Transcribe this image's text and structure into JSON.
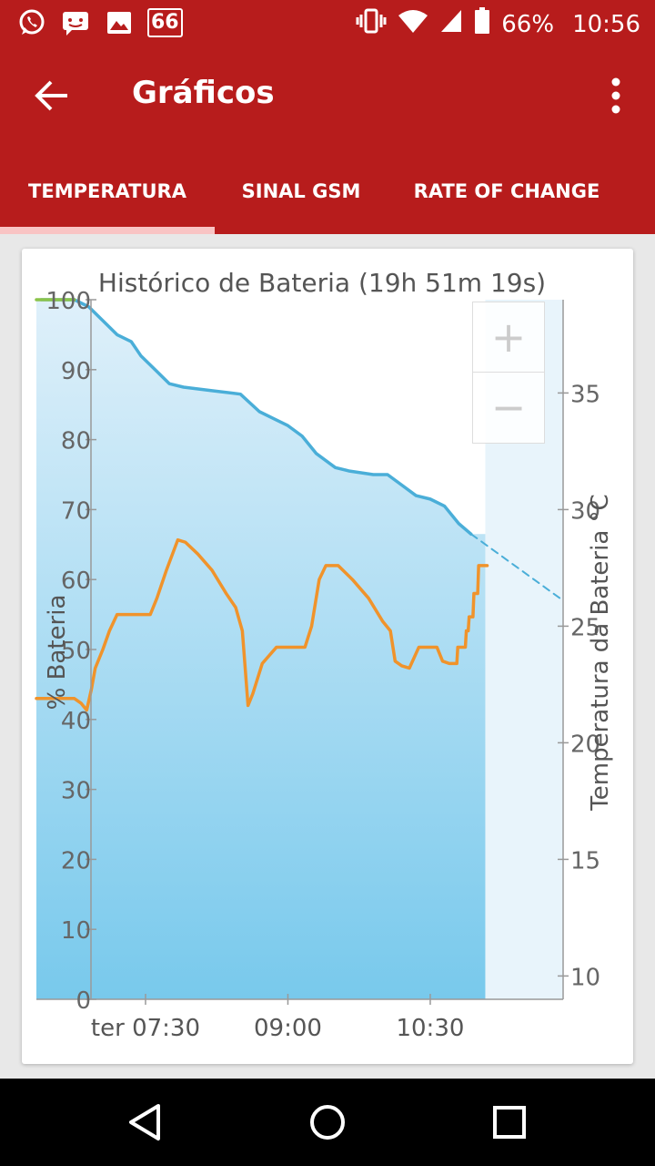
{
  "status_bar": {
    "notification_icons": [
      "whatsapp-icon",
      "sms-icon",
      "image-icon"
    ],
    "badge": "66",
    "battery_percent": "66%",
    "time": "10:56"
  },
  "app_bar": {
    "title": "Gráficos"
  },
  "tabs": [
    {
      "label": "TEMPERATURA",
      "active": true
    },
    {
      "label": "SINAL GSM",
      "active": false
    },
    {
      "label": "RATE OF CHANGE",
      "active": false
    }
  ],
  "zoom": {
    "in_label": "+",
    "out_label": "−"
  },
  "chart_data": {
    "type": "line",
    "title": "Histórico de Bateria (19h 51m 19s)",
    "ylabel": "% Bateria",
    "y2label": "Temperatura da Bateria °C",
    "ylim": [
      0,
      100
    ],
    "y2lim": [
      9,
      39
    ],
    "yticks": [
      "0",
      "10",
      "20",
      "30",
      "40",
      "50",
      "60",
      "70",
      "80",
      "90",
      "100"
    ],
    "y2ticks": [
      "10",
      "15",
      "20",
      "25",
      "30",
      "35"
    ],
    "xticks": [
      {
        "label": "ter 07:30",
        "t": 7.5
      },
      {
        "label": "09:00",
        "t": 9.0
      },
      {
        "label": "10:30",
        "t": 10.5
      }
    ],
    "xlim": [
      6.35,
      11.9
    ],
    "grid": false,
    "series": [
      {
        "axis": "left",
        "color": "#4aaed8",
        "points": [
          [
            6.4,
            100
          ],
          [
            6.75,
            100
          ],
          [
            6.9,
            99
          ],
          [
            7.05,
            97
          ],
          [
            7.2,
            95
          ],
          [
            7.35,
            94
          ],
          [
            7.45,
            92
          ],
          [
            7.6,
            90
          ],
          [
            7.75,
            88
          ],
          [
            7.9,
            87.5
          ],
          [
            8.2,
            87
          ],
          [
            8.5,
            86.5
          ],
          [
            8.7,
            84
          ],
          [
            8.85,
            83
          ],
          [
            9.0,
            82
          ],
          [
            9.15,
            80.5
          ],
          [
            9.3,
            78
          ],
          [
            9.5,
            76
          ],
          [
            9.65,
            75.5
          ],
          [
            9.9,
            75
          ],
          [
            10.05,
            75
          ],
          [
            10.2,
            73.5
          ],
          [
            10.35,
            72
          ],
          [
            10.5,
            71.5
          ],
          [
            10.65,
            70.5
          ],
          [
            10.8,
            68
          ],
          [
            10.93,
            66.5
          ]
        ]
      },
      {
        "axis": "left",
        "color": "#4aaed8",
        "dashed": true,
        "points": [
          [
            10.93,
            66.5
          ],
          [
            11.9,
            57
          ]
        ]
      },
      {
        "axis": "left",
        "color": "#8bc34a",
        "points": [
          [
            6.35,
            100
          ],
          [
            6.75,
            100
          ]
        ]
      },
      {
        "axis": "right",
        "color": "#f0932b",
        "points": [
          [
            6.35,
            21.9
          ],
          [
            6.75,
            21.9
          ],
          [
            6.82,
            21.7
          ],
          [
            6.88,
            21.4
          ],
          [
            6.93,
            22.3
          ],
          [
            6.97,
            23.2
          ],
          [
            7.05,
            24.0
          ],
          [
            7.12,
            24.8
          ],
          [
            7.2,
            25.5
          ],
          [
            7.55,
            25.5
          ],
          [
            7.62,
            26.2
          ],
          [
            7.72,
            27.4
          ],
          [
            7.84,
            28.7
          ],
          [
            7.92,
            28.6
          ],
          [
            8.05,
            28.1
          ],
          [
            8.2,
            27.4
          ],
          [
            8.35,
            26.4
          ],
          [
            8.45,
            25.8
          ],
          [
            8.52,
            24.8
          ],
          [
            8.58,
            21.6
          ],
          [
            8.63,
            22.1
          ],
          [
            8.73,
            23.4
          ],
          [
            8.88,
            24.1
          ],
          [
            9.0,
            24.1
          ],
          [
            9.18,
            24.1
          ],
          [
            9.25,
            25.0
          ],
          [
            9.33,
            27.0
          ],
          [
            9.4,
            27.6
          ],
          [
            9.53,
            27.6
          ],
          [
            9.68,
            27.0
          ],
          [
            9.85,
            26.2
          ],
          [
            10.0,
            25.2
          ],
          [
            10.08,
            24.8
          ],
          [
            10.13,
            23.5
          ],
          [
            10.2,
            23.3
          ],
          [
            10.28,
            23.2
          ],
          [
            10.38,
            24.1
          ],
          [
            10.57,
            24.1
          ],
          [
            10.63,
            23.5
          ],
          [
            10.7,
            23.4
          ],
          [
            10.78,
            23.4
          ],
          [
            10.79,
            24.1
          ],
          [
            10.87,
            24.1
          ],
          [
            10.88,
            24.8
          ],
          [
            10.9,
            24.8
          ],
          [
            10.91,
            25.4
          ],
          [
            10.95,
            25.4
          ],
          [
            10.96,
            26.4
          ],
          [
            11.0,
            26.4
          ],
          [
            11.01,
            27.6
          ],
          [
            11.1,
            27.6
          ]
        ]
      }
    ],
    "shaded_area": {
      "until_t": 11.08,
      "secondary_until_t": 11.9
    }
  },
  "nav_bar": {
    "buttons": [
      "back-icon",
      "home-icon",
      "recents-icon"
    ]
  }
}
